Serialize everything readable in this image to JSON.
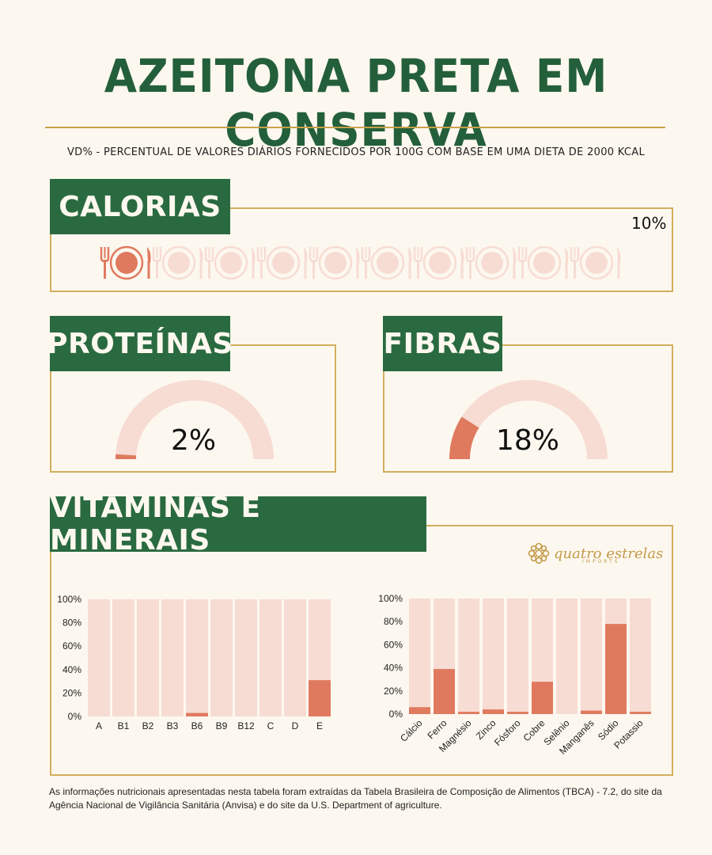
{
  "title": "AZEITONA PRETA EM CONSERVA",
  "subtitle": "VD% - PERCENTUAL DE VALORES DIÁRIOS FORNECIDOS POR 100G COM BASE EM UMA DIETA DE 2000 KCAL",
  "colors": {
    "green": "#2a6a40",
    "accent": "#e07a5f",
    "faded": "#f7dcd3",
    "gold": "#d2ae5e",
    "background": "#fdf8ef"
  },
  "calorias": {
    "label": "CALORIAS",
    "value_text": "10%",
    "value": 10,
    "icon": "plate-fork-knife-icon",
    "icon_count": 10
  },
  "proteinas": {
    "label": "PROTEÍNAS",
    "value_text": "2%",
    "value": 2
  },
  "fibras": {
    "label": "FIBRAS",
    "value_text": "18%",
    "value": 18
  },
  "vitaminas": {
    "label": "VITAMINAS E MINERAIS"
  },
  "brand": {
    "name": "quatro estrelas",
    "tagline": "IMPORTS"
  },
  "chart_data": [
    {
      "type": "bar",
      "categories": [
        "A",
        "B1",
        "B2",
        "B3",
        "B6",
        "B9",
        "B12",
        "C",
        "D",
        "E"
      ],
      "values": [
        0,
        0,
        0,
        0,
        3,
        0,
        0,
        0,
        0,
        31
      ],
      "ylim": [
        0,
        100
      ],
      "yticks": [
        "0%",
        "20%",
        "40%",
        "60%",
        "80%",
        "100%"
      ]
    },
    {
      "type": "bar",
      "categories": [
        "Cálcio",
        "Ferro",
        "Magnésio",
        "Zinco",
        "Fósforo",
        "Cobre",
        "Selênio",
        "Manganês",
        "Sódio",
        "Potassio"
      ],
      "values": [
        6,
        39,
        2,
        4,
        2,
        28,
        0,
        3,
        78,
        2
      ],
      "ylim": [
        0,
        100
      ],
      "yticks": [
        "0%",
        "20%",
        "40%",
        "60%",
        "80%",
        "100%"
      ]
    }
  ],
  "footnote": "As informações nutricionais apresentadas nesta tabela foram extraídas da Tabela Brasileira de Composição de Alimentos (TBCA) - 7.2, do site da Agência Nacional de Vigilância Sanitária (Anvisa) e do site da U.S. Department of agriculture."
}
